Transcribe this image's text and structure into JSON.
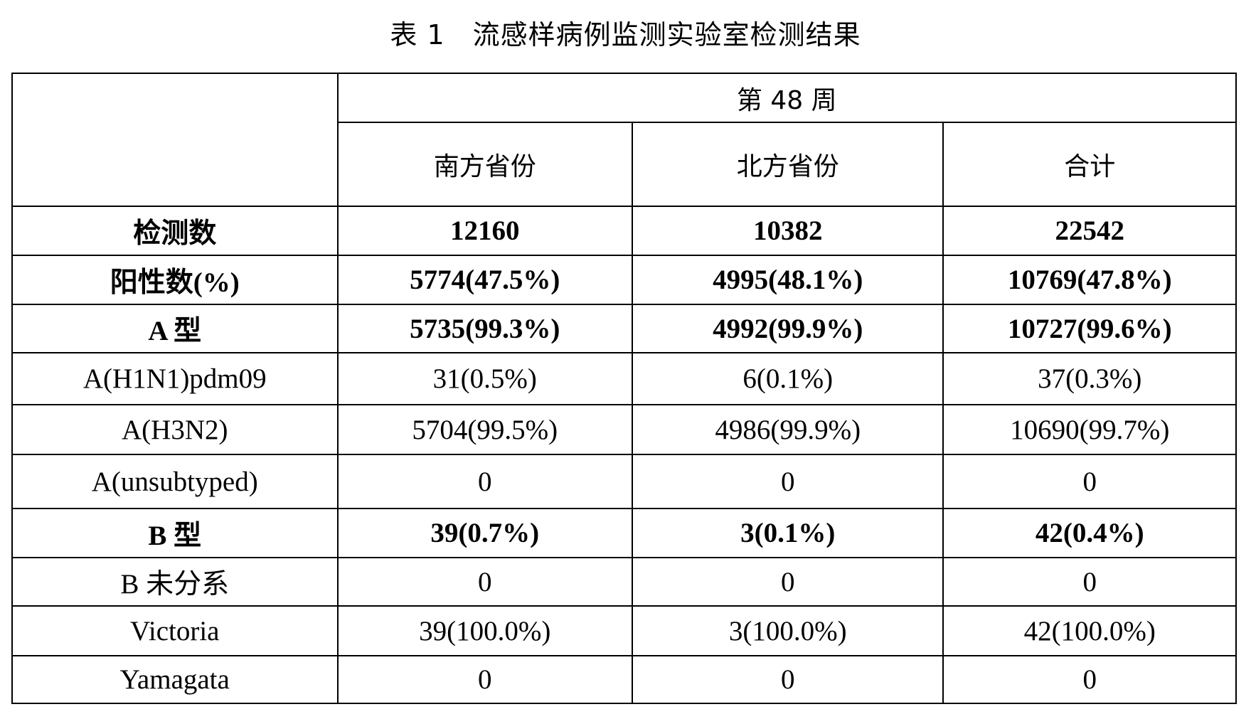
{
  "title": "表 1　流感样病例监测实验室检测结果",
  "header": {
    "week": "第 48 周",
    "columns": [
      "南方省份",
      "北方省份",
      "合计"
    ]
  },
  "rows": [
    {
      "label": "检测数",
      "values": [
        "12160",
        "10382",
        "22542"
      ],
      "bold": true
    },
    {
      "label": "阳性数(%)",
      "values": [
        "5774(47.5%)",
        "4995(48.1%)",
        "10769(47.8%)"
      ],
      "bold": true
    },
    {
      "label": "A 型",
      "values": [
        "5735(99.3%)",
        "4992(99.9%)",
        "10727(99.6%)"
      ],
      "bold": true
    },
    {
      "label": "A(H1N1)pdm09",
      "values": [
        "31(0.5%)",
        "6(0.1%)",
        "37(0.3%)"
      ],
      "bold": false
    },
    {
      "label": "A(H3N2)",
      "values": [
        "5704(99.5%)",
        "4986(99.9%)",
        "10690(99.7%)"
      ],
      "bold": false
    },
    {
      "label": "A(unsubtyped)",
      "values": [
        "0",
        "0",
        "0"
      ],
      "bold": false
    },
    {
      "label": "B 型",
      "values": [
        "39(0.7%)",
        "3(0.1%)",
        "42(0.4%)"
      ],
      "bold": true
    },
    {
      "label": "B 未分系",
      "values": [
        "0",
        "0",
        "0"
      ],
      "bold": false
    },
    {
      "label": "Victoria",
      "values": [
        "39(100.0%)",
        "3(100.0%)",
        "42(100.0%)"
      ],
      "bold": false
    },
    {
      "label": "Yamagata",
      "values": [
        "0",
        "0",
        "0"
      ],
      "bold": false
    }
  ]
}
